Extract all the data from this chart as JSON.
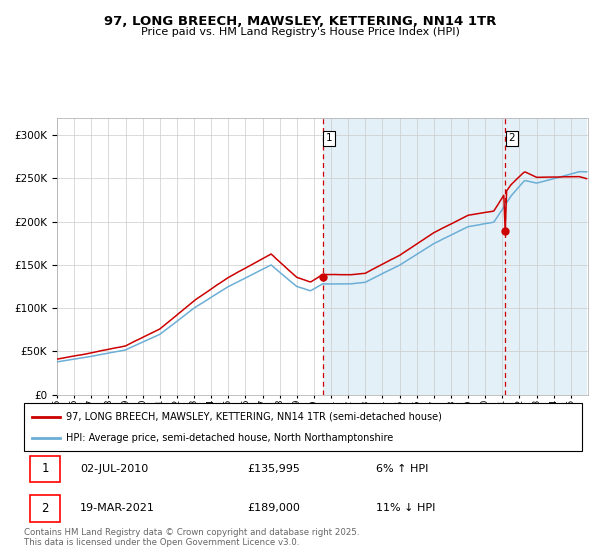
{
  "title_line1": "97, LONG BREECH, MAWSLEY, KETTERING, NN14 1TR",
  "title_line2": "Price paid vs. HM Land Registry's House Price Index (HPI)",
  "legend_line1": "97, LONG BREECH, MAWSLEY, KETTERING, NN14 1TR (semi-detached house)",
  "legend_line2": "HPI: Average price, semi-detached house, North Northamptonshire",
  "footnote": "Contains HM Land Registry data © Crown copyright and database right 2025.\nThis data is licensed under the Open Government Licence v3.0.",
  "purchase1_date": "02-JUL-2010",
  "purchase1_price": "£135,995",
  "purchase1_hpi": "6% ↑ HPI",
  "purchase2_date": "19-MAR-2021",
  "purchase2_price": "£189,000",
  "purchase2_hpi": "11% ↓ HPI",
  "hpi_color": "#6baed6",
  "property_color": "#cc0000",
  "vline_color": "#cc0000",
  "ylim": [
    0,
    320000
  ],
  "yticks": [
    0,
    50000,
    100000,
    150000,
    200000,
    250000,
    300000
  ],
  "xlim_start": 1995,
  "xlim_end": 2026
}
